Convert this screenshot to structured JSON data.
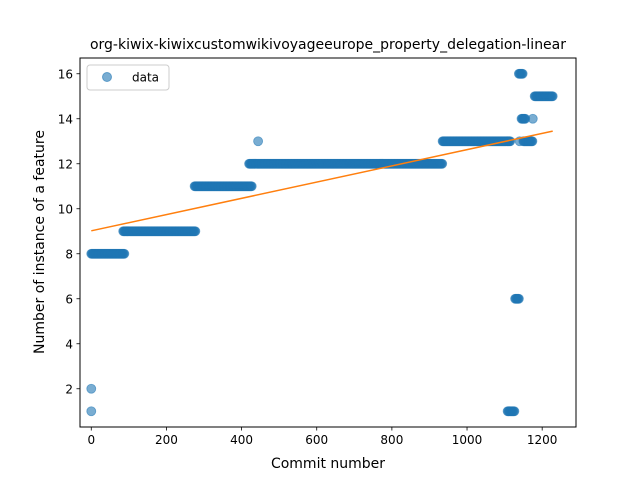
{
  "chart_data": {
    "type": "scatter",
    "title": "org-kiwix-kiwixcustomwikivoyageeurope_property_delegation-linear",
    "xlabel": "Commit number",
    "ylabel": "Number of instance of a feature",
    "xlim": [
      -30,
      1290
    ],
    "ylim": [
      0.3,
      16.7
    ],
    "xticks": [
      0,
      200,
      400,
      600,
      800,
      1000,
      1200
    ],
    "yticks": [
      2,
      4,
      6,
      8,
      10,
      12,
      14,
      16
    ],
    "grid": false,
    "legend": {
      "placement": "top-left",
      "entries": [
        "data"
      ]
    },
    "colors": {
      "data": "#1f77b4",
      "fit": "#ff7f0e"
    },
    "series": [
      {
        "name": "data",
        "style": "markers",
        "segments": [
          {
            "x_start": 0,
            "x_end": 88,
            "y": 8,
            "step": 2
          },
          {
            "x_start": 85,
            "x_end": 278,
            "y": 9,
            "step": 2
          },
          {
            "x_start": 275,
            "x_end": 428,
            "y": 11,
            "step": 2
          },
          {
            "x_start": 420,
            "x_end": 935,
            "y": 12,
            "step": 2
          },
          {
            "x_start": 935,
            "x_end": 1115,
            "y": 13,
            "step": 2
          },
          {
            "x_start": 1108,
            "x_end": 1126,
            "y": 1,
            "step": 2
          },
          {
            "x_start": 1128,
            "x_end": 1138,
            "y": 6,
            "step": 2
          },
          {
            "x_start": 1138,
            "x_end": 1148,
            "y": 16,
            "step": 2
          },
          {
            "x_start": 1145,
            "x_end": 1155,
            "y": 14,
            "step": 2
          },
          {
            "x_start": 1150,
            "x_end": 1175,
            "y": 13,
            "step": 2
          },
          {
            "x_start": 1180,
            "x_end": 1228,
            "y": 15,
            "step": 2
          }
        ],
        "points": [
          {
            "x": 0,
            "y": 2
          },
          {
            "x": 0,
            "y": 1
          },
          {
            "x": 444,
            "y": 13
          },
          {
            "x": 1140,
            "y": 13
          },
          {
            "x": 1175,
            "y": 14
          }
        ]
      },
      {
        "name": "",
        "style": "line",
        "points": [
          {
            "x": 0,
            "y": 9.02
          },
          {
            "x": 1228,
            "y": 13.45
          }
        ]
      }
    ]
  }
}
